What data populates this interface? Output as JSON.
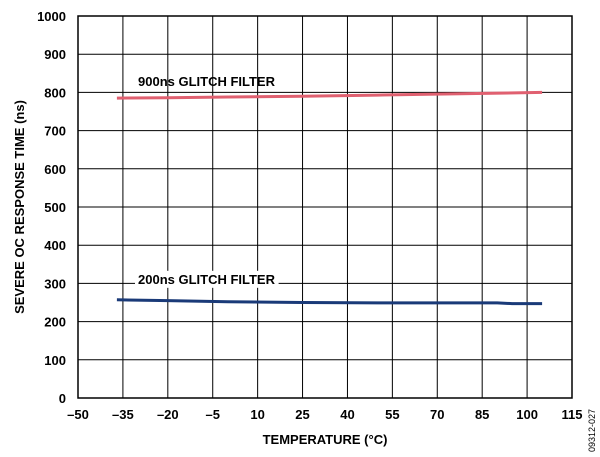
{
  "chart_data": {
    "type": "line",
    "xlabel": "TEMPERATURE (°C)",
    "ylabel": "SEVERE OC RESPONSE TIME (ns)",
    "xlim": [
      -50,
      115
    ],
    "ylim": [
      0,
      1000
    ],
    "xticks": [
      -50,
      -35,
      -20,
      -5,
      10,
      25,
      40,
      55,
      70,
      85,
      100,
      115
    ],
    "xtick_labels": [
      "–50",
      "–35",
      "–20",
      "–5",
      "10",
      "25",
      "40",
      "55",
      "70",
      "85",
      "100",
      "115"
    ],
    "yticks": [
      0,
      100,
      200,
      300,
      400,
      500,
      600,
      700,
      800,
      900,
      1000
    ],
    "ytick_labels": [
      "0",
      "100",
      "200",
      "300",
      "400",
      "500",
      "600",
      "700",
      "800",
      "900",
      "1000"
    ],
    "grid": true,
    "series": [
      {
        "name": "900ns GLITCH FILTER",
        "color": "#e06070",
        "x": [
          -37,
          -20,
          0,
          25,
          50,
          75,
          105
        ],
        "y": [
          785,
          786,
          788,
          790,
          793,
          796,
          800
        ]
      },
      {
        "name": "200ns GLITCH FILTER",
        "color": "#1a3a78",
        "x": [
          -37,
          -20,
          0,
          25,
          50,
          75,
          90,
          95,
          105
        ],
        "y": [
          257,
          255,
          252,
          250,
          249,
          249,
          249,
          247,
          247
        ]
      }
    ]
  },
  "figure_id": "09312-027"
}
